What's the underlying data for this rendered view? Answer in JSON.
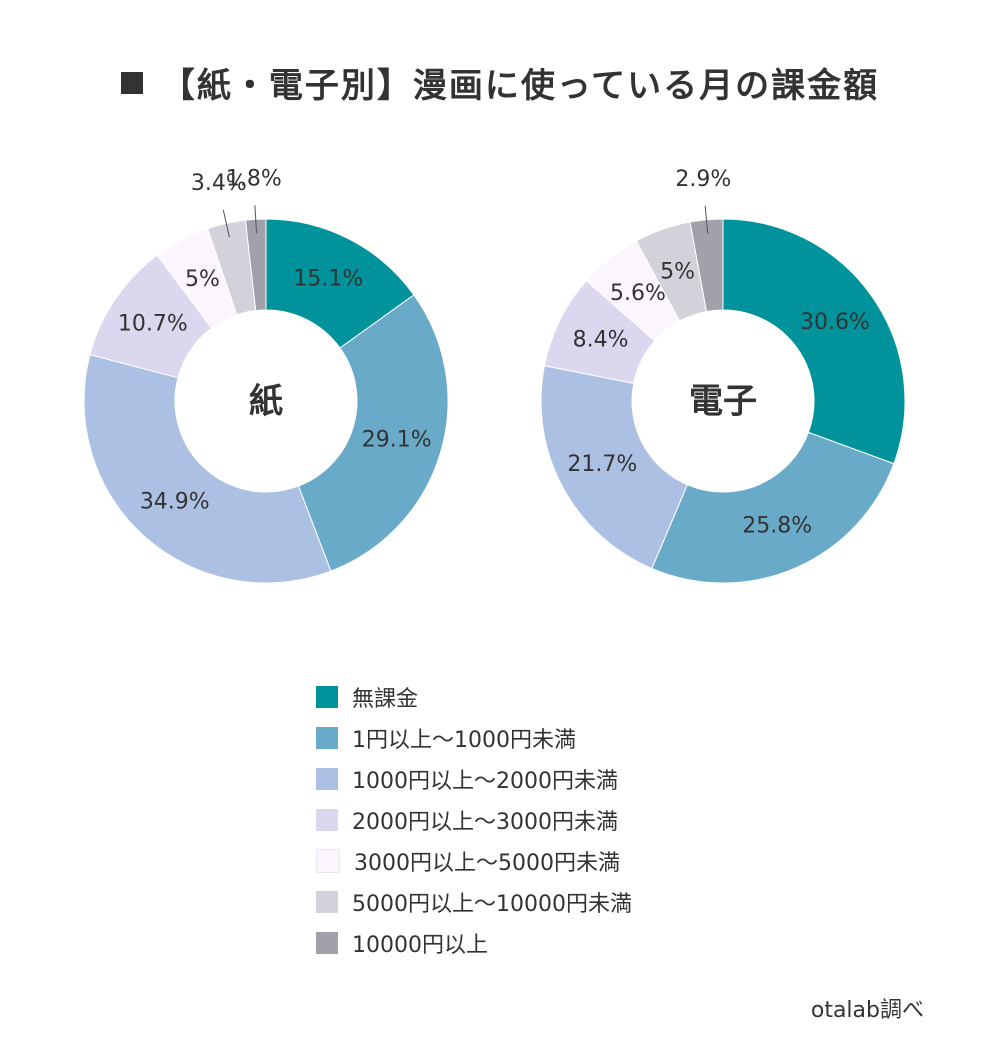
{
  "title": "【紙・電子別】漫画に使っている月の課金額",
  "source": "otalab調べ",
  "legend": [
    {
      "label": "無課金",
      "color": "#00939b"
    },
    {
      "label": "1円以上〜1000円未満",
      "color": "#6aaac9"
    },
    {
      "label": "1000円以上〜2000円未満",
      "color": "#abc0e2"
    },
    {
      "label": "2000円以上〜3000円未満",
      "color": "#dbd7ef"
    },
    {
      "label": "3000円以上〜5000円未満",
      "color": "#fbf6fd"
    },
    {
      "label": "5000円以上〜10000円未満",
      "color": "#d3d1d9"
    },
    {
      "label": "10000円以上",
      "color": "#a2a1aa"
    }
  ],
  "chart_data": [
    {
      "type": "pie",
      "center_label": "紙",
      "categories": [
        "無課金",
        "1円以上〜1000円未満",
        "1000円以上〜2000円未満",
        "2000円以上〜3000円未満",
        "3000円以上〜5000円未満",
        "5000円以上〜10000円未満",
        "10000円以上"
      ],
      "values": [
        15.1,
        29.1,
        34.9,
        10.7,
        5,
        3.4,
        1.8
      ],
      "value_labels": [
        "15.1%",
        "29.1%",
        "34.9%",
        "10.7%",
        "5%",
        "3.4%",
        "1.8%"
      ]
    },
    {
      "type": "pie",
      "center_label": "電子",
      "categories": [
        "無課金",
        "1円以上〜1000円未満",
        "1000円以上〜2000円未満",
        "2000円以上〜3000円未満",
        "3000円以上〜5000円未満",
        "5000円以上〜10000円未満",
        "10000円以上"
      ],
      "values": [
        30.6,
        25.8,
        21.7,
        8.4,
        5.6,
        5,
        2.9
      ],
      "value_labels": [
        "30.6%",
        "25.8%",
        "21.7%",
        "8.4%",
        "5.6%",
        "5%",
        "2.9%"
      ]
    }
  ]
}
